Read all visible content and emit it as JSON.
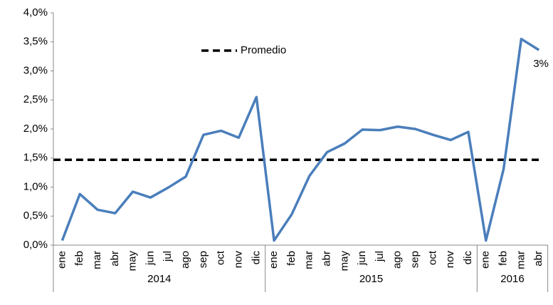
{
  "chart_data": {
    "type": "line",
    "groups": [
      {
        "label": "2014",
        "months": [
          "ene",
          "feb",
          "mar",
          "abr",
          "may",
          "jun",
          "jul",
          "ago",
          "sep",
          "oct",
          "nov",
          "dic"
        ]
      },
      {
        "label": "2015",
        "months": [
          "ene",
          "feb",
          "mar",
          "abr",
          "may",
          "jun",
          "jul",
          "ago",
          "sep",
          "oct",
          "nov",
          "dic"
        ]
      },
      {
        "label": "2016",
        "months": [
          "ene",
          "feb",
          "mar",
          "abr"
        ]
      }
    ],
    "series": [
      {
        "color": "#4a7ebb",
        "values": [
          0.08,
          0.88,
          0.61,
          0.55,
          0.92,
          0.82,
          0.99,
          1.18,
          1.9,
          1.97,
          1.85,
          2.55,
          0.08,
          0.53,
          1.19,
          1.6,
          1.75,
          1.99,
          1.98,
          2.04,
          2.0,
          1.9,
          1.81,
          1.95,
          0.08,
          1.31,
          3.55,
          3.36
        ],
        "value_labels": [
          null,
          null,
          null,
          null,
          null,
          null,
          null,
          null,
          null,
          null,
          null,
          null,
          null,
          null,
          null,
          null,
          null,
          null,
          null,
          null,
          null,
          null,
          null,
          null,
          null,
          null,
          null,
          "3%"
        ]
      }
    ],
    "average": {
      "name": "Promedio",
      "value": 1.47,
      "color": "#000000"
    },
    "ylim": [
      0,
      4
    ],
    "yticks": [
      {
        "value": 0,
        "label": "0,0%"
      },
      {
        "value": 0.5,
        "label": "0,5%"
      },
      {
        "value": 1,
        "label": "1,0%"
      },
      {
        "value": 1.5,
        "label": "1,5%"
      },
      {
        "value": 2,
        "label": "2,0%"
      },
      {
        "value": 2.5,
        "label": "2,5%"
      },
      {
        "value": 3,
        "label": "3,0%"
      },
      {
        "value": 3.5,
        "label": "3,5%"
      },
      {
        "value": 4,
        "label": "4,0%"
      }
    ]
  }
}
